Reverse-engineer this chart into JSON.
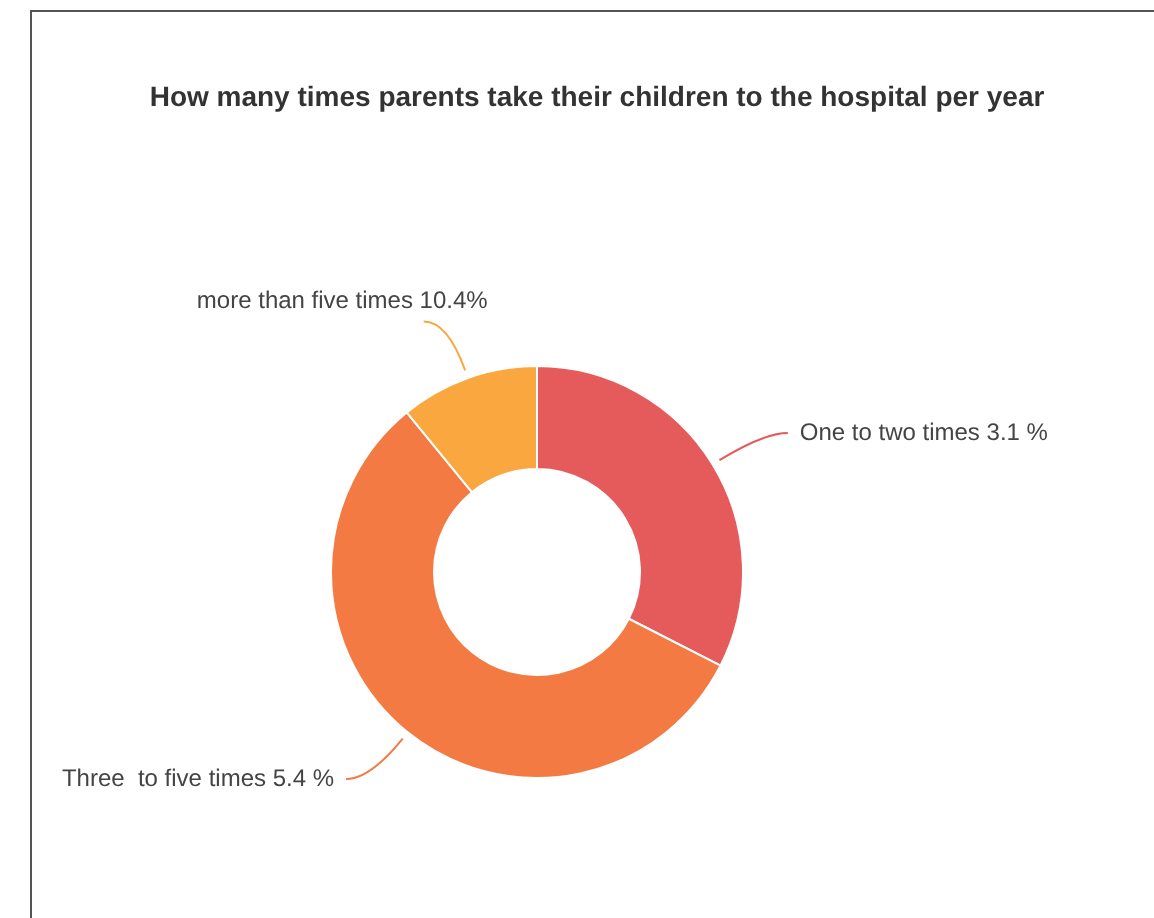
{
  "chart_data": {
    "type": "donut",
    "title": "How many times parents take their children to the hospital per year",
    "categories": [
      "One to two times 3.1 %",
      "Three  to five times 5.4 %",
      "more than five times 10.4%"
    ],
    "values": [
      32.5,
      56.6,
      10.9
    ],
    "colors": [
      "#e55b5c",
      "#f37a43",
      "#fba73f"
    ],
    "legend": false
  }
}
